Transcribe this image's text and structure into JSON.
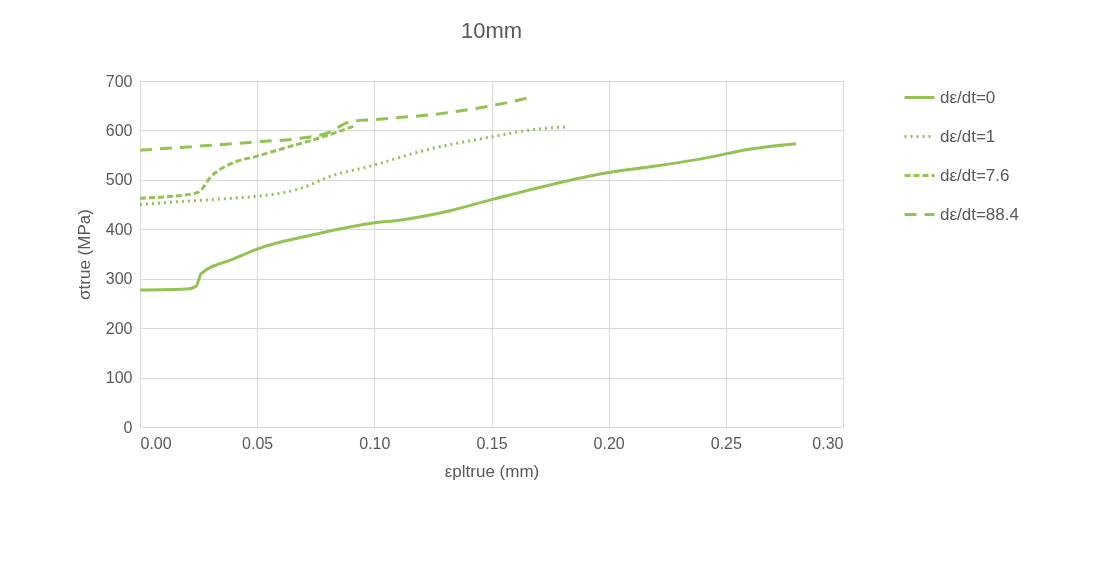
{
  "chart_data": {
    "type": "line",
    "title": "10mm",
    "xlabel": "εpltrue (mm)",
    "ylabel": "σtrue (MPa)",
    "xlim": [
      0,
      0.3
    ],
    "xticks": [
      {
        "value": 0,
        "label": "0.00"
      },
      {
        "value": 0.05,
        "label": "0.05"
      },
      {
        "value": 0.1,
        "label": "0.10"
      },
      {
        "value": 0.15,
        "label": "0.15"
      },
      {
        "value": 0.2,
        "label": "0.20"
      },
      {
        "value": 0.25,
        "label": "0.25"
      },
      {
        "value": 0.3,
        "label": "0.30"
      }
    ],
    "ylim": [
      0,
      700
    ],
    "yticks": [
      0,
      100,
      200,
      300,
      400,
      500,
      600,
      700
    ],
    "grid": true,
    "legend": "right",
    "series": [
      {
        "name": "dε/dt=0",
        "color": "#92c353",
        "line_style": "solid",
        "x": [
          0,
          0.02,
          0.024,
          0.026,
          0.04,
          0.05,
          0.075,
          0.09,
          0.1,
          0.11,
          0.13,
          0.15,
          0.2,
          0.22,
          0.24,
          0.26,
          0.28
        ],
        "values": [
          277,
          279,
          285,
          310,
          340,
          360,
          390,
          405,
          413,
          418,
          435,
          460,
          515,
          528,
          543,
          562,
          573
        ]
      },
      {
        "name": "dε/dt=1",
        "color": "#92c353",
        "line_style": "dotted",
        "x": [
          0,
          0.02,
          0.04,
          0.05,
          0.06,
          0.07,
          0.08,
          0.1,
          0.12,
          0.15,
          0.17,
          0.182
        ],
        "values": [
          450,
          457,
          463,
          467,
          473,
          485,
          505,
          530,
          558,
          587,
          603,
          607
        ]
      },
      {
        "name": "dε/dt=7.6",
        "color": "#92c353",
        "line_style": "dashed",
        "x": [
          0,
          0.02,
          0.025,
          0.03,
          0.04,
          0.05,
          0.06,
          0.08,
          0.092
        ],
        "values": [
          463,
          470,
          475,
          505,
          535,
          548,
          562,
          590,
          610
        ]
      },
      {
        "name": "dε/dt=88.4",
        "color": "#92c353",
        "line_style": "dashed",
        "x": [
          0,
          0.05,
          0.07,
          0.08,
          0.09,
          0.1,
          0.13,
          0.15,
          0.165
        ],
        "values": [
          560,
          577,
          585,
          595,
          618,
          622,
          635,
          650,
          665
        ]
      }
    ]
  }
}
